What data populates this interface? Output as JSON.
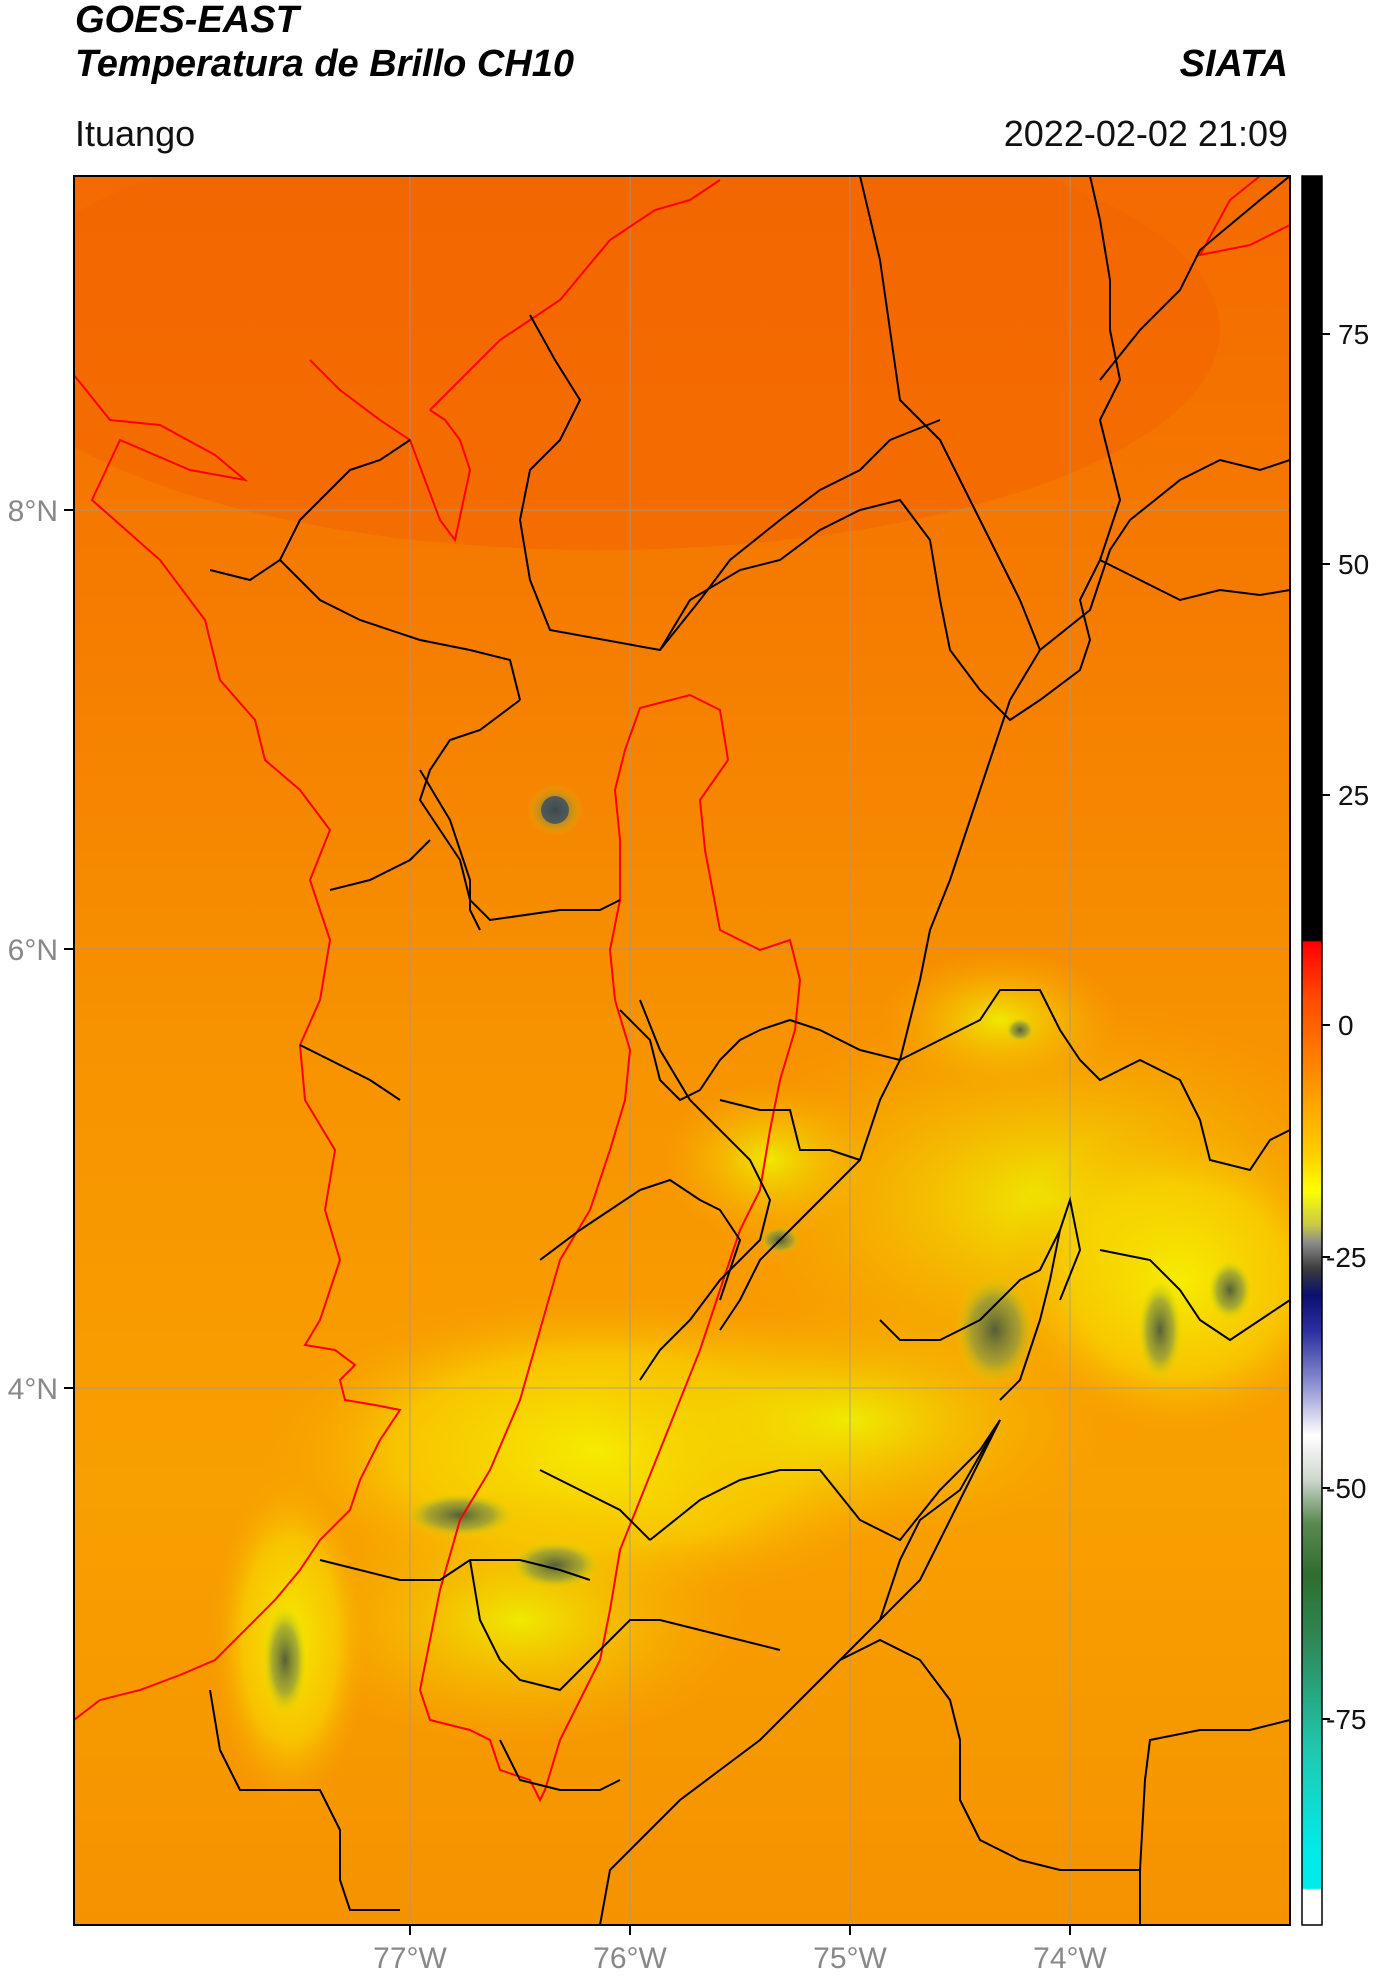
{
  "header": {
    "satellite": "GOES-EAST",
    "product": "Temperatura de Brillo CH10",
    "organization": "SIATA",
    "station": "Ituango",
    "datetime": "2022-02-02 21:09"
  },
  "map": {
    "lat_labels": [
      "8°N",
      "6°N",
      "4°N"
    ],
    "lon_labels": [
      "77°W",
      "76°W",
      "75°W",
      "74°W"
    ]
  },
  "colorbar": {
    "ticks": [
      "75",
      "50",
      "25",
      "0",
      "-25",
      "-50",
      "-75"
    ],
    "colors": {
      "black": "#000000",
      "red": "#ff0000",
      "orange": "#ff8c00",
      "yellow": "#ffff00",
      "gray": "#5a5a5a",
      "navy": "#0a0a80",
      "white": "#ffffff",
      "green": "#2e7d32",
      "cyan": "#00e5e5"
    }
  },
  "colors": {
    "country_border": "#ff0000",
    "department_border": "#000000",
    "grid": "#9a9a9a"
  }
}
